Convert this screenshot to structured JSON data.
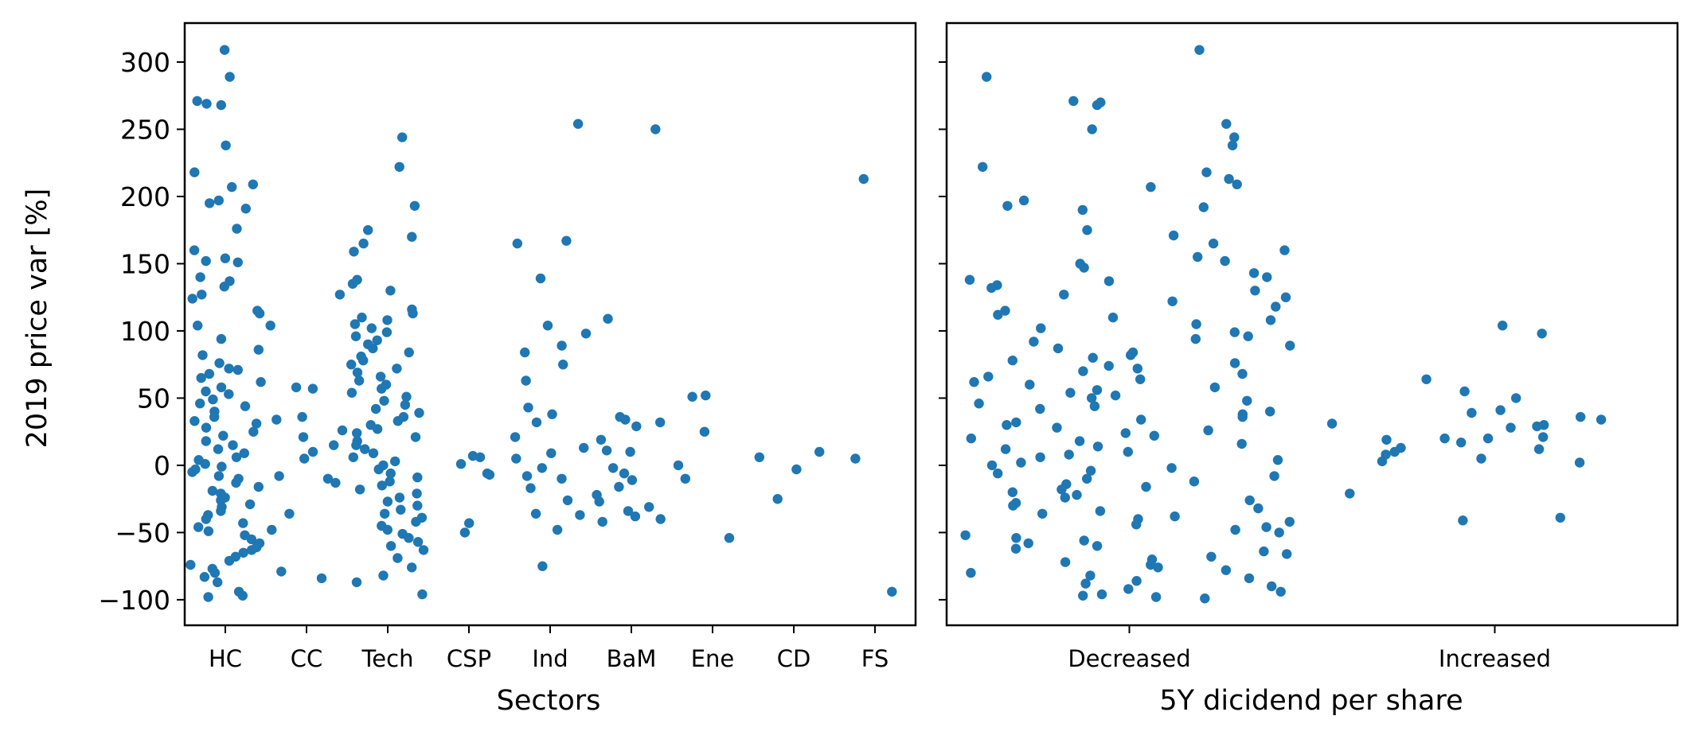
{
  "chart_data": [
    {
      "type": "scatter",
      "subtype": "strip",
      "title": "",
      "xlabel": "Sectors",
      "ylabel": "2019 price var [%]",
      "categories": [
        "HC",
        "CC",
        "Tech",
        "CSP",
        "Ind",
        "BaM",
        "Ene",
        "CD",
        "FS"
      ],
      "ylim": [
        -119,
        329
      ],
      "yticks": [
        -100,
        -50,
        0,
        50,
        100,
        150,
        200,
        250,
        300
      ],
      "ytick_labels": [
        "−100",
        "−50",
        "0",
        "50",
        "100",
        "150",
        "200",
        "250",
        "300"
      ],
      "grid": false,
      "color": "#1f77b4",
      "points": {
        "HC": [
          309,
          289,
          271,
          269,
          268,
          238,
          218,
          209,
          207,
          197,
          195,
          191,
          176,
          160,
          154,
          152,
          151,
          140,
          137,
          133,
          127,
          124,
          115,
          113,
          104,
          94,
          86,
          82,
          76,
          72,
          71,
          68,
          65,
          62,
          58,
          55,
          53,
          49,
          46,
          44,
          40,
          36,
          33,
          31,
          28,
          25,
          22,
          18,
          15,
          12,
          9,
          6,
          4,
          1,
          -1,
          -3,
          -5,
          -8,
          -10,
          -13,
          -16,
          -19,
          -21,
          -24,
          -26,
          -29,
          -31,
          -34,
          -37,
          -40,
          -43,
          -46,
          -49,
          -52,
          -55,
          -58,
          -61,
          -63,
          -65,
          -68,
          -71,
          -74,
          -77,
          -80,
          -83,
          -87,
          -94,
          -97,
          -98
        ],
        "CC": [
          127,
          104,
          58,
          57,
          36,
          34,
          26,
          21,
          15,
          10,
          5,
          -8,
          -10,
          -13,
          -36,
          -48,
          -79,
          -84
        ],
        "Tech": [
          244,
          222,
          193,
          175,
          170,
          165,
          159,
          138,
          135,
          130,
          116,
          113,
          110,
          108,
          105,
          102,
          99,
          96,
          93,
          90,
          87,
          84,
          81,
          78,
          75,
          72,
          69,
          66,
          63,
          60,
          57,
          54,
          51,
          48,
          45,
          42,
          39,
          36,
          33,
          30,
          27,
          24,
          21,
          18,
          15,
          12,
          9,
          6,
          3,
          0,
          -3,
          -6,
          -9,
          -12,
          -15,
          -18,
          -21,
          -24,
          -27,
          -30,
          -33,
          -36,
          -39,
          -42,
          -45,
          -48,
          -51,
          -54,
          -57,
          -60,
          -63,
          -69,
          -76,
          -82,
          -87,
          -96
        ],
        "CSP": [
          7,
          6,
          1,
          -6,
          -7,
          -43,
          -50
        ],
        "Ind": [
          254,
          167,
          165,
          139,
          104,
          98,
          89,
          84,
          75,
          63,
          43,
          38,
          32,
          21,
          13,
          9,
          5,
          -2,
          -8,
          -10,
          -17,
          -26,
          -36,
          -37,
          -48,
          -75
        ],
        "BaM": [
          250,
          109,
          36,
          34,
          32,
          29,
          19,
          11,
          10,
          -2,
          -6,
          -11,
          -16,
          -22,
          -27,
          -31,
          -34,
          -38,
          -40,
          -42
        ],
        "Ene": [
          52,
          51,
          25,
          0,
          -10,
          -54
        ],
        "CD": [
          10,
          6,
          -3,
          -25
        ],
        "FS": [
          213,
          5,
          -94
        ]
      }
    },
    {
      "type": "scatter",
      "subtype": "strip",
      "title": "",
      "xlabel": "5Y dicidend per share",
      "ylabel": "",
      "categories": [
        "Decreased",
        "Increased"
      ],
      "ylim": [
        -119,
        329
      ],
      "sharey": true,
      "grid": false,
      "color": "#1f77b4",
      "points": {
        "Decreased": [
          309,
          289,
          271,
          270,
          268,
          254,
          250,
          244,
          238,
          222,
          218,
          213,
          209,
          207,
          197,
          193,
          192,
          190,
          175,
          171,
          165,
          160,
          155,
          152,
          150,
          147,
          143,
          140,
          138,
          137,
          134,
          132,
          130,
          127,
          125,
          122,
          118,
          115,
          112,
          110,
          108,
          105,
          102,
          99,
          96,
          94,
          92,
          89,
          87,
          84,
          82,
          80,
          78,
          76,
          74,
          72,
          70,
          68,
          66,
          64,
          62,
          60,
          58,
          56,
          54,
          52,
          50,
          48,
          46,
          44,
          42,
          40,
          38,
          36,
          34,
          32,
          30,
          28,
          26,
          24,
          22,
          20,
          18,
          16,
          14,
          12,
          10,
          8,
          6,
          4,
          2,
          0,
          -2,
          -4,
          -6,
          -8,
          -10,
          -12,
          -14,
          -16,
          -18,
          -20,
          -22,
          -24,
          -26,
          -28,
          -30,
          -32,
          -34,
          -36,
          -38,
          -40,
          -42,
          -44,
          -46,
          -48,
          -50,
          -52,
          -54,
          -56,
          -58,
          -60,
          -62,
          -64,
          -66,
          -68,
          -70,
          -72,
          -74,
          -76,
          -78,
          -80,
          -82,
          -84,
          -86,
          -88,
          -90,
          -92,
          -94,
          -96,
          -97,
          -98,
          -99
        ],
        "Increased": [
          104,
          98,
          64,
          55,
          50,
          41,
          39,
          36,
          34,
          31,
          30,
          29,
          28,
          21,
          20,
          20,
          19,
          17,
          13,
          12,
          10,
          8,
          5,
          3,
          2,
          -21,
          -39,
          -41
        ]
      }
    }
  ]
}
